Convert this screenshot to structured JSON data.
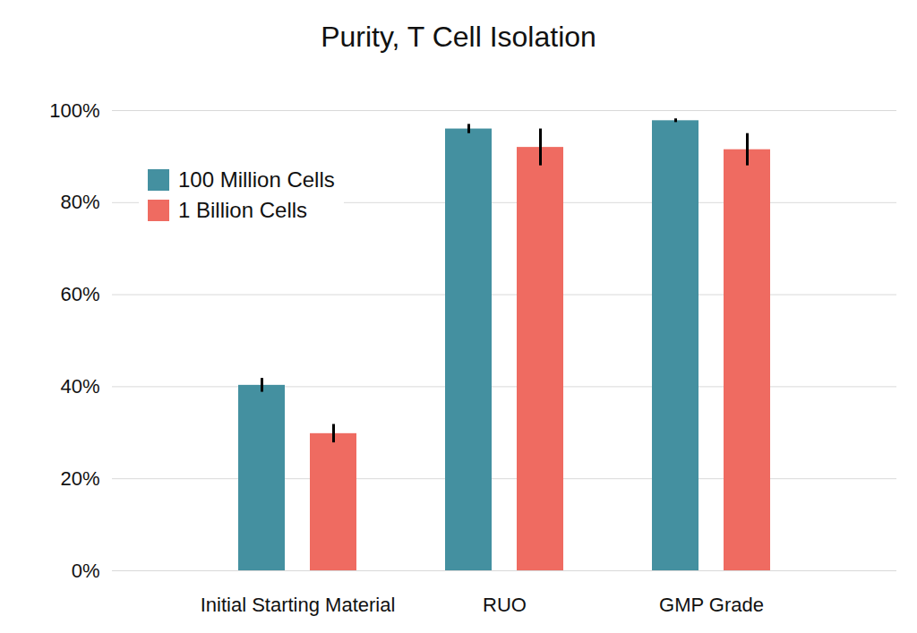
{
  "chart_data": {
    "type": "bar",
    "title": "Purity, T Cell Isolation",
    "categories": [
      "Initial Starting Material",
      "RUO",
      "GMP Grade"
    ],
    "series": [
      {
        "name": "100 Million Cells",
        "color": "#4490a0",
        "values": [
          40.3,
          96,
          97.8
        ],
        "errors": [
          1.5,
          1,
          0.4
        ]
      },
      {
        "name": "1 Billion Cells",
        "color": "#ef6b61",
        "values": [
          29.8,
          92,
          91.5
        ],
        "errors": [
          2,
          4,
          3.5
        ]
      }
    ],
    "ylim": [
      0,
      100
    ],
    "yticks": [
      {
        "value": 0,
        "label": "0%"
      },
      {
        "value": 20,
        "label": "20%"
      },
      {
        "value": 40,
        "label": "40%"
      },
      {
        "value": 60,
        "label": "60%"
      },
      {
        "value": 80,
        "label": "80%"
      },
      {
        "value": 100,
        "label": "100%"
      }
    ],
    "grid": true,
    "legend": "upper left"
  }
}
